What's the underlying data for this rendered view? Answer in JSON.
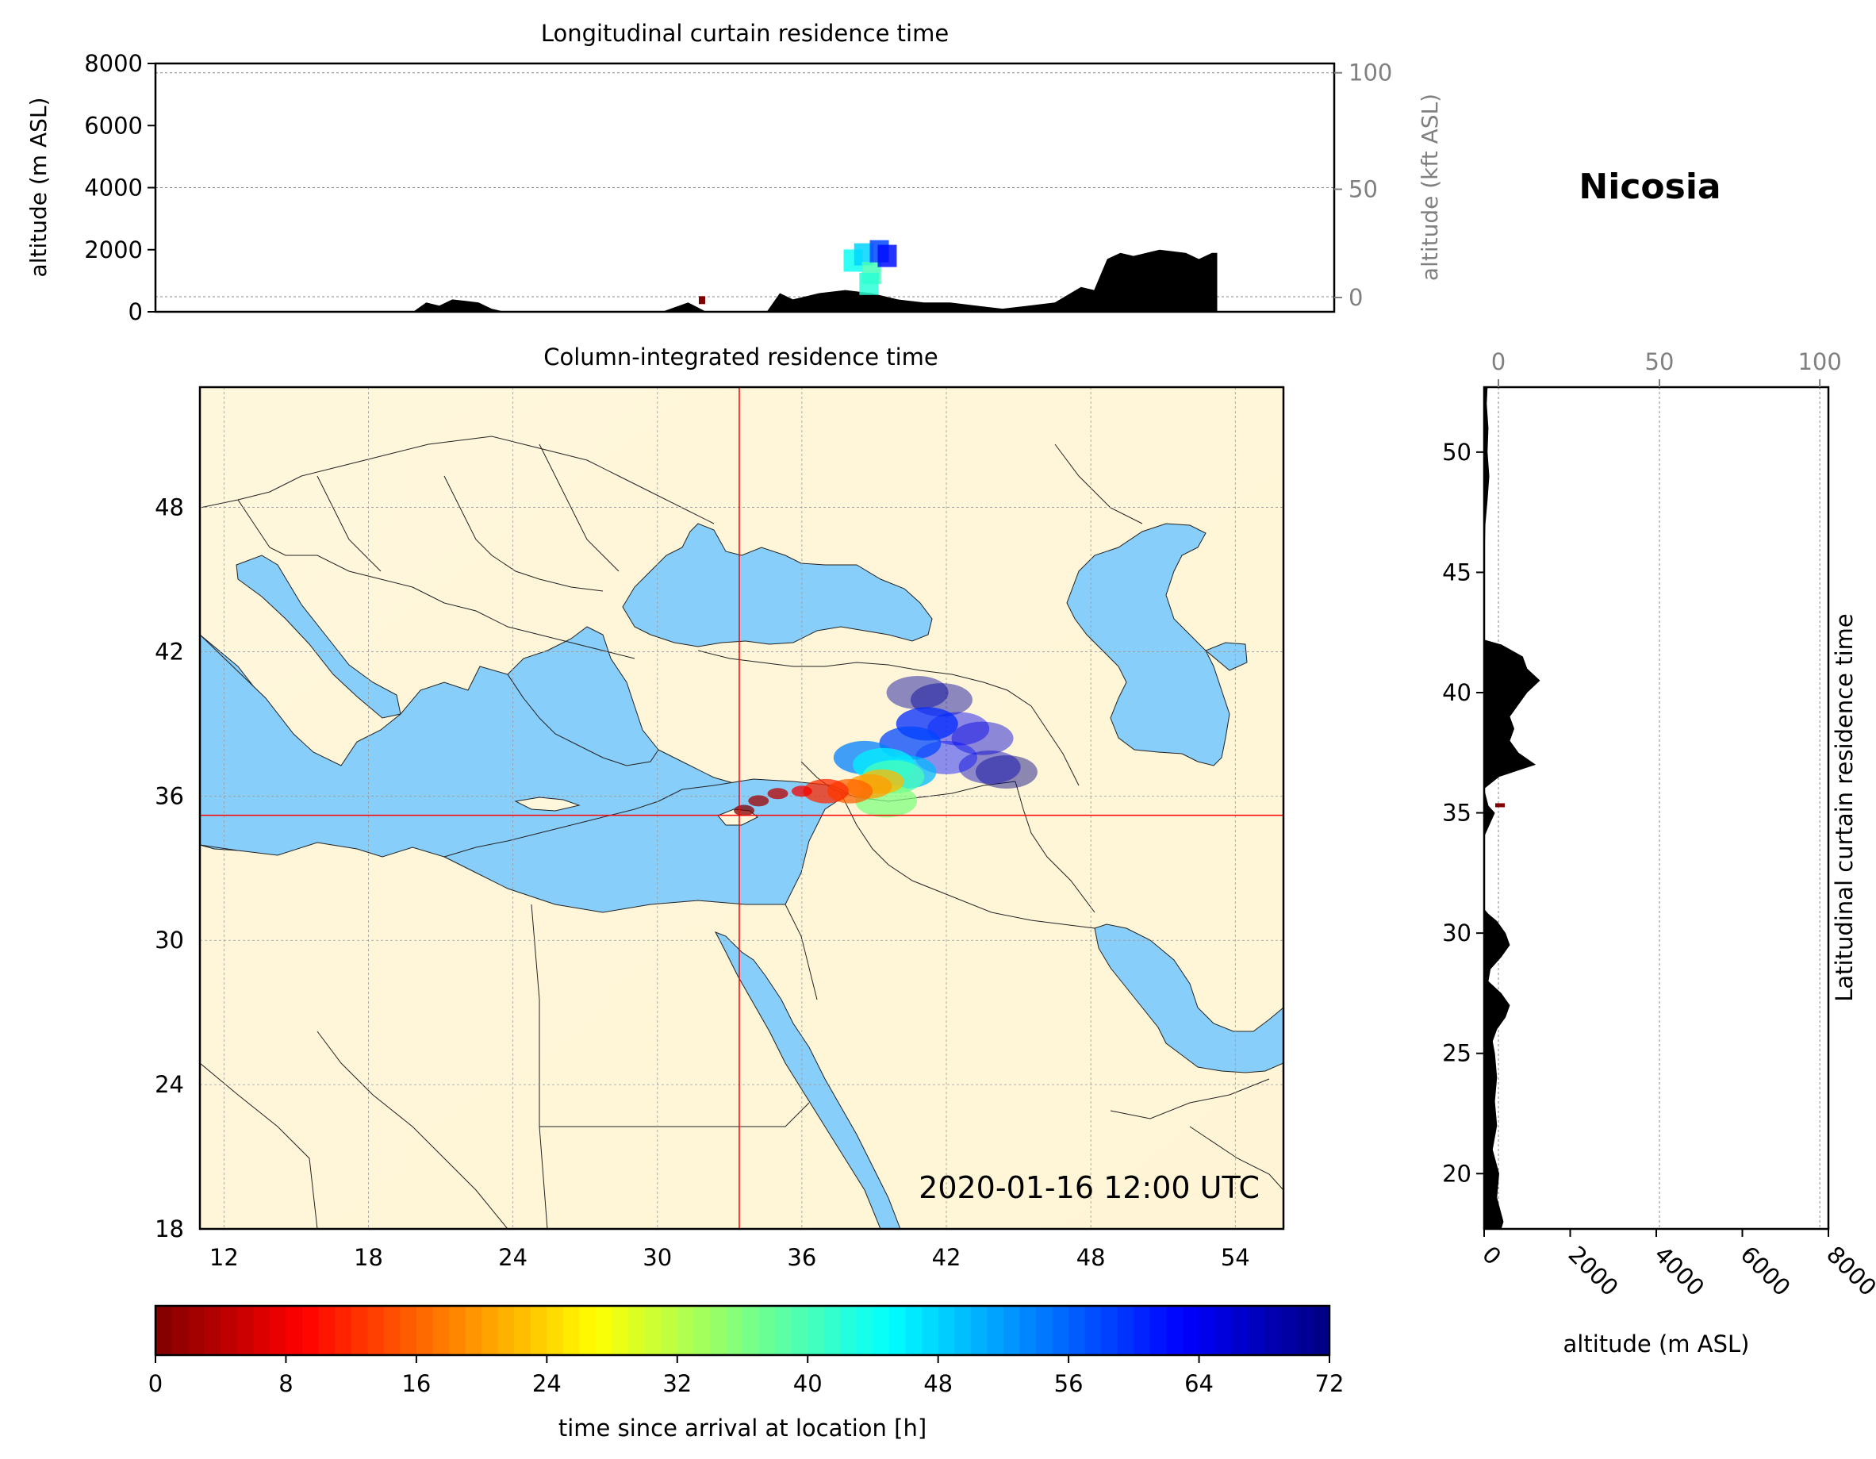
{
  "location_title": "Nicosia",
  "timestamp": "2020-01-16 12:00 UTC",
  "colors": {
    "sea": "#87cefa",
    "land": "#fff7dc",
    "terrain": "#000000",
    "crosshair": "#ff0000",
    "frame": "#000000",
    "secondary_axis": "#808080"
  },
  "chart_data": [
    {
      "id": "longitudinal",
      "type": "area",
      "title": "Longitudinal curtain residence time",
      "ylabel": "altitude (m ASL)",
      "ylabel_right": "altitude (kft ASL)",
      "ylim": [
        0,
        8000
      ],
      "yticks": [
        "0",
        "2000",
        "4000",
        "6000",
        "8000"
      ],
      "yticks_right": [
        "0",
        "50",
        "100"
      ],
      "grid": true,
      "terrain": {
        "lon": [
          11,
          22.5,
          23,
          23.5,
          24,
          24.5,
          25,
          25.5,
          26,
          27,
          32,
          33,
          33.7,
          34.3,
          35,
          36,
          36.5,
          37,
          38,
          39,
          40,
          41,
          42,
          43,
          44,
          45,
          46,
          47,
          48,
          48.5,
          49,
          49.5,
          50,
          51,
          52,
          52.5,
          53,
          53.2,
          53.2
        ],
        "alt": [
          0,
          0,
          300,
          200,
          400,
          350,
          300,
          100,
          0,
          0,
          0,
          300,
          0,
          0,
          0,
          0,
          600,
          400,
          600,
          700,
          600,
          400,
          300,
          300,
          200,
          100,
          200,
          300,
          800,
          700,
          1700,
          1900,
          1800,
          2000,
          1900,
          1700,
          1900,
          1900,
          0
        ]
      },
      "plume": [
        {
          "lon": 39.3,
          "alt": 1650,
          "h": 44
        },
        {
          "lon": 39.7,
          "alt": 1850,
          "h": 48
        },
        {
          "lon": 40.0,
          "alt": 1250,
          "h": 40
        },
        {
          "lon": 40.3,
          "alt": 1950,
          "h": 58
        },
        {
          "lon": 40.6,
          "alt": 1800,
          "h": 62
        },
        {
          "lon": 39.9,
          "alt": 900,
          "h": 42
        }
      ]
    },
    {
      "id": "column",
      "type": "heatmap",
      "title": "Column-integrated residence time",
      "xlim": [
        11,
        56
      ],
      "ylim": [
        18,
        53
      ],
      "xticks": [
        "12",
        "18",
        "24",
        "30",
        "36",
        "42",
        "48",
        "54"
      ],
      "yticks": [
        "18",
        "24",
        "30",
        "36",
        "42",
        "48"
      ],
      "grid": true,
      "crosshair": {
        "lon": 33.4,
        "lat": 35.2
      },
      "plume": [
        {
          "lon": 33.6,
          "lat": 35.4,
          "h": 0
        },
        {
          "lon": 34.2,
          "lat": 35.8,
          "h": 2
        },
        {
          "lon": 35.0,
          "lat": 36.1,
          "h": 4
        },
        {
          "lon": 36.0,
          "lat": 36.2,
          "h": 8
        },
        {
          "lon": 37.0,
          "lat": 36.2,
          "h": 12
        },
        {
          "lon": 38.0,
          "lat": 36.2,
          "h": 16
        },
        {
          "lon": 38.8,
          "lat": 36.4,
          "h": 20
        },
        {
          "lon": 39.3,
          "lat": 36.6,
          "h": 22
        },
        {
          "lon": 39.5,
          "lat": 35.8,
          "h": 36
        },
        {
          "lon": 39.8,
          "lat": 36.8,
          "h": 40
        },
        {
          "lon": 39.4,
          "lat": 37.3,
          "h": 46
        },
        {
          "lon": 40.3,
          "lat": 37.0,
          "h": 50
        },
        {
          "lon": 38.6,
          "lat": 37.6,
          "h": 54
        },
        {
          "lon": 40.5,
          "lat": 38.2,
          "h": 58
        },
        {
          "lon": 41.2,
          "lat": 39.0,
          "h": 60
        },
        {
          "lon": 42.0,
          "lat": 37.6,
          "h": 62
        },
        {
          "lon": 42.5,
          "lat": 38.8,
          "h": 64
        },
        {
          "lon": 43.5,
          "lat": 38.4,
          "h": 66
        },
        {
          "lon": 43.8,
          "lat": 37.2,
          "h": 68
        },
        {
          "lon": 41.8,
          "lat": 40.0,
          "h": 70
        },
        {
          "lon": 40.8,
          "lat": 40.3,
          "h": 70
        },
        {
          "lon": 44.5,
          "lat": 37.0,
          "h": 72
        }
      ]
    },
    {
      "id": "latitudinal",
      "type": "area",
      "title": "Latitudinal curtain residence time",
      "xlabel": "altitude (m ASL)",
      "xlim": [
        0,
        8000
      ],
      "xticks": [
        "0",
        "2000",
        "4000",
        "6000",
        "8000"
      ],
      "xticks_top": [
        "0",
        "50",
        "100"
      ],
      "ylim": [
        17.7,
        52.7
      ],
      "yticks": [
        "20",
        "25",
        "30",
        "35",
        "40",
        "45",
        "50"
      ],
      "grid": true,
      "terrain": {
        "lat": [
          17.7,
          18,
          19,
          20,
          21,
          22,
          23,
          24,
          25,
          25.5,
          26,
          26.5,
          27,
          27.5,
          28,
          28.5,
          29,
          29.5,
          30,
          30.5,
          30.8,
          31,
          34,
          35,
          35.3,
          36,
          36.5,
          37,
          37.5,
          38,
          38.5,
          39,
          39.5,
          40,
          40.5,
          41,
          41.5,
          42,
          42.2,
          45,
          47,
          48,
          49,
          50,
          51,
          52,
          52.7
        ],
        "alt": [
          400,
          450,
          300,
          350,
          200,
          300,
          250,
          300,
          250,
          200,
          300,
          500,
          600,
          400,
          100,
          150,
          400,
          600,
          500,
          300,
          100,
          0,
          0,
          250,
          100,
          0,
          350,
          1200,
          800,
          600,
          700,
          600,
          800,
          1000,
          1300,
          1000,
          900,
          400,
          0,
          0,
          30,
          80,
          120,
          80,
          100,
          60,
          80
        ]
      }
    },
    {
      "id": "colorbar",
      "type": "heatmap",
      "xlabel": "time since arrival at location [h]",
      "xlim": [
        0,
        72
      ],
      "xticks": [
        "0",
        "8",
        "16",
        "24",
        "32",
        "40",
        "48",
        "56",
        "64",
        "72"
      ]
    }
  ]
}
